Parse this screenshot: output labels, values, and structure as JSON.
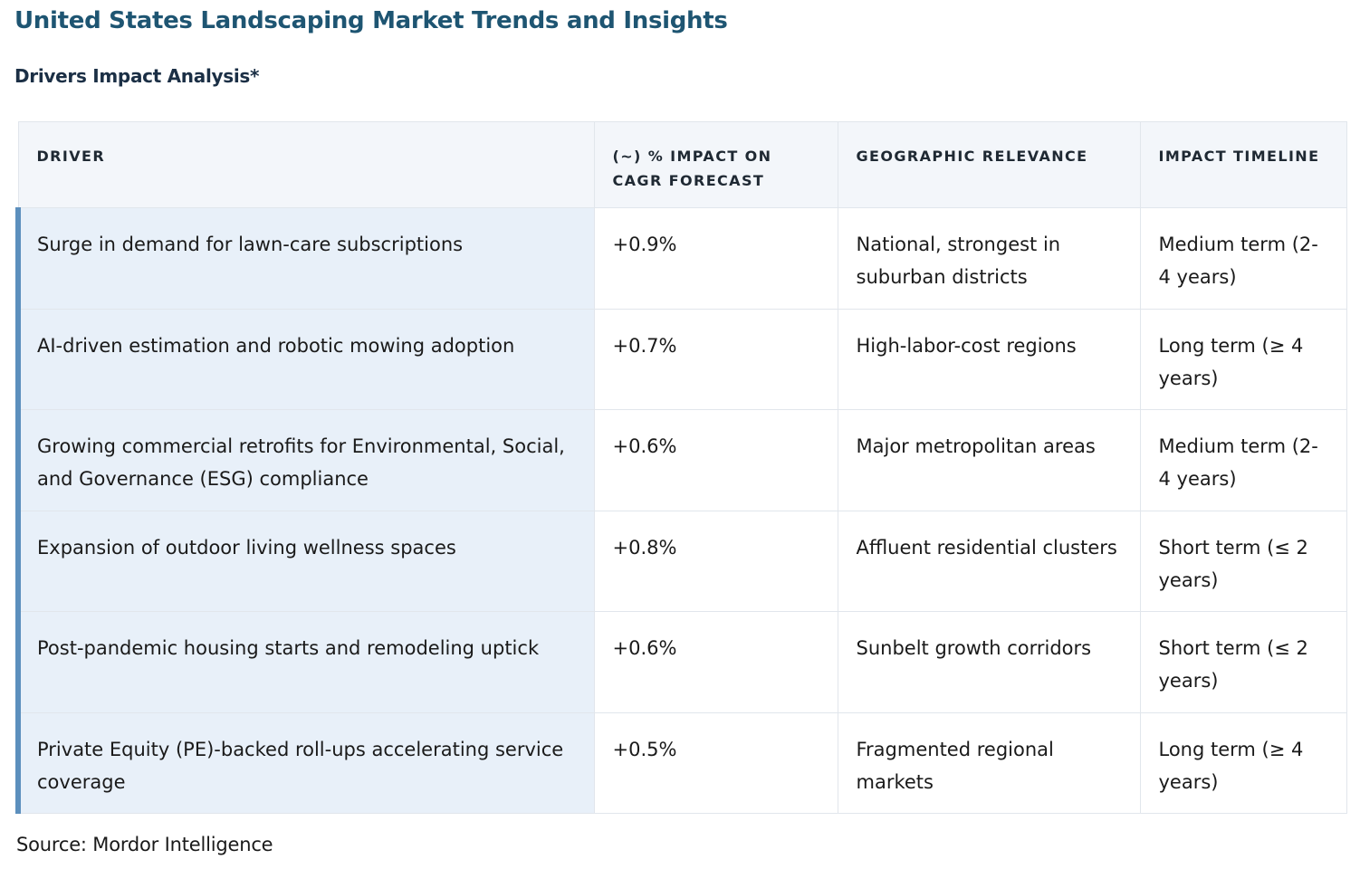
{
  "page": {
    "title": "United States Landscaping Market Trends and Insights",
    "section_title": "Drivers Impact Analysis*",
    "source": "Source: Mordor Intelligence"
  },
  "table": {
    "headers": [
      "DRIVER",
      "(~) % IMPACT ON CAGR FORECAST",
      "GEOGRAPHIC RELEVANCE",
      "IMPACT TIMELINE"
    ],
    "rows": [
      {
        "driver": "Surge in demand for lawn-care subscriptions",
        "impact": "+0.9%",
        "geography": "National, strongest in suburban districts",
        "timeline": "Medium term (2-4 years)"
      },
      {
        "driver": "AI-driven estimation and robotic mowing adoption",
        "impact": "+0.7%",
        "geography": "High-labor-cost regions",
        "timeline": "Long term (≥ 4 years)"
      },
      {
        "driver": "Growing commercial retrofits for Environmental, Social, and Governance (ESG) compliance",
        "impact": "+0.6%",
        "geography": "Major metropolitan areas",
        "timeline": "Medium term (2-4 years)"
      },
      {
        "driver": "Expansion of outdoor living wellness spaces",
        "impact": "+0.8%",
        "geography": "Affluent residential clusters",
        "timeline": "Short term (≤ 2 years)"
      },
      {
        "driver": "Post-pandemic housing starts and remodeling uptick",
        "impact": "+0.6%",
        "geography": "Sunbelt growth corridors",
        "timeline": "Short term (≤ 2 years)"
      },
      {
        "driver": "Private Equity (PE)-backed roll-ups accelerating service coverage",
        "impact": "+0.5%",
        "geography": "Fragmented regional markets",
        "timeline": "Long term (≥ 4 years)"
      }
    ]
  },
  "colors": {
    "title": "#1e5572",
    "section_title": "#1b2f45",
    "header_background": "#f3f6fa",
    "driver_cell_background": "#e8f0f9",
    "row_accent": "#5c8fbd",
    "border": "#e1e6ec"
  }
}
